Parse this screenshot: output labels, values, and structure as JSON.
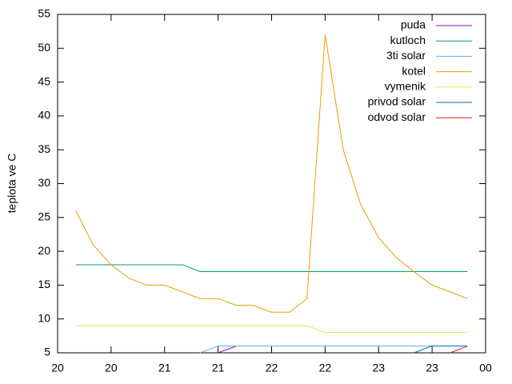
{
  "chart_data": {
    "type": "line",
    "ylabel": "teplota ve C",
    "x": [
      20.17,
      20.33,
      20.5,
      20.67,
      20.83,
      21,
      21.17,
      21.33,
      21.5,
      21.67,
      21.83,
      22,
      22.17,
      22.33,
      22.5,
      22.67,
      22.83,
      23,
      23.17,
      23.33,
      23.5,
      23.67,
      23.83
    ],
    "series": [
      {
        "name": "puda",
        "color": "#9400d3",
        "values": [
          null,
          null,
          null,
          null,
          null,
          null,
          null,
          null,
          5,
          6,
          6,
          6,
          6,
          6,
          6,
          6,
          6,
          6,
          6,
          6,
          6,
          6,
          6
        ]
      },
      {
        "name": "kutloch",
        "color": "#009e73",
        "values": [
          18,
          18,
          18,
          18,
          18,
          18,
          18,
          17,
          17,
          17,
          17,
          17,
          17,
          17,
          17,
          17,
          17,
          17,
          17,
          17,
          17,
          17,
          17
        ]
      },
      {
        "name": "3ti solar",
        "color": "#56b4e9",
        "values": [
          null,
          null,
          null,
          null,
          null,
          null,
          null,
          5,
          6,
          6,
          6,
          6,
          6,
          6,
          6,
          6,
          6,
          6,
          6,
          6,
          6,
          6,
          6
        ]
      },
      {
        "name": "kotel",
        "color": "#e69f00",
        "values": [
          26,
          21,
          18,
          16,
          15,
          15,
          14,
          13,
          13,
          12,
          12,
          11,
          11,
          13,
          52,
          35,
          27,
          22,
          19,
          17,
          15,
          14,
          13
        ]
      },
      {
        "name": "vymenik",
        "color": "#f0e442",
        "values": [
          9,
          9,
          9,
          9,
          9,
          9,
          9,
          9,
          9,
          9,
          9,
          9,
          9,
          9,
          8,
          8,
          8,
          8,
          8,
          8,
          8,
          8,
          8
        ]
      },
      {
        "name": "privod solar",
        "color": "#0072b2",
        "values": [
          null,
          null,
          null,
          null,
          null,
          null,
          null,
          null,
          null,
          null,
          null,
          null,
          null,
          null,
          null,
          null,
          null,
          null,
          null,
          5,
          6,
          6,
          6
        ]
      },
      {
        "name": "odvod solar",
        "color": "#e51e10",
        "values": [
          null,
          null,
          null,
          null,
          null,
          null,
          null,
          null,
          null,
          null,
          null,
          null,
          null,
          null,
          null,
          null,
          null,
          null,
          null,
          null,
          null,
          5,
          6
        ]
      }
    ],
    "xlim": [
      20,
      24
    ],
    "xticks": [
      20,
      {
        "value": 20.5,
        "label": "20"
      },
      21,
      {
        "value": 21.5,
        "label": "21"
      },
      22,
      {
        "value": 22.5,
        "label": "22"
      },
      23,
      {
        "value": 23.5,
        "label": "23"
      },
      {
        "value": 24,
        "label": "00"
      }
    ],
    "ylim": [
      5,
      55
    ],
    "yticks": [
      5,
      10,
      15,
      20,
      25,
      30,
      35,
      40,
      45,
      50,
      55
    ],
    "legend": "top-right"
  }
}
